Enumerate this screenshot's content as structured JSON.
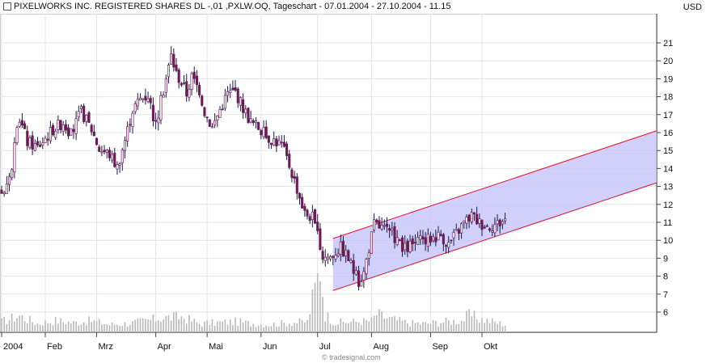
{
  "title": "PIXELWORKS INC. REGISTERED SHARES DL -,01 ,PXLW.OQ, Tageschart - 07.01.2004 - 27.10.2004 - 11.15",
  "currency": "USD",
  "watermark": "© tradesignal.com",
  "colors": {
    "background": "#ffffff",
    "candle_body": "#6a1d55",
    "candle_wick": "#1a1a4a",
    "volume_bar": "#b8b8b8",
    "channel_fill": "#c4c4fa",
    "channel_border": "#e01030",
    "grid": "#e4e4e4",
    "axis": "#444444"
  },
  "chart_data": {
    "type": "candlestick",
    "title": "PIXELWORKS INC. REGISTERED SHARES DL -,01 ,PXLW.OQ, Tageschart - 07.01.2004 - 27.10.2004 - 11.15",
    "ylabel": "USD",
    "ylim": [
      5.5,
      22
    ],
    "y_ticks": [
      6,
      7,
      8,
      9,
      10,
      11,
      12,
      13,
      14,
      15,
      16,
      17,
      18,
      19,
      20,
      21
    ],
    "x_ticks": [
      "2004",
      "Feb",
      "Mrz",
      "Apr",
      "Mai",
      "Jun",
      "Jul",
      "Aug",
      "Sep",
      "Okt"
    ],
    "x_tick_days": [
      0,
      17,
      37,
      60,
      80,
      101,
      123,
      144,
      167,
      187
    ],
    "total_days": 255,
    "grid": true,
    "trend_channel": {
      "start_day": 129,
      "end_day": 255,
      "upper": [
        10.1,
        16.1
      ],
      "lower": [
        7.2,
        13.2
      ]
    },
    "price_keypoints": [
      [
        0,
        12.7
      ],
      [
        3,
        13.4
      ],
      [
        7,
        16.8
      ],
      [
        10,
        15.5
      ],
      [
        14,
        15.2
      ],
      [
        20,
        16.2
      ],
      [
        24,
        16.6
      ],
      [
        27,
        15.9
      ],
      [
        31,
        17.2
      ],
      [
        35,
        16.2
      ],
      [
        38,
        15.1
      ],
      [
        42,
        14.8
      ],
      [
        45,
        14.1
      ],
      [
        48,
        15.6
      ],
      [
        51,
        17.3
      ],
      [
        54,
        17.9
      ],
      [
        57,
        18.1
      ],
      [
        60,
        16.4
      ],
      [
        63,
        18.4
      ],
      [
        66,
        20.3
      ],
      [
        68,
        19.3
      ],
      [
        70,
        18.8
      ],
      [
        72,
        18.2
      ],
      [
        74,
        19.1
      ],
      [
        77,
        18.4
      ],
      [
        79,
        17.2
      ],
      [
        82,
        16.3
      ],
      [
        85,
        17.3
      ],
      [
        88,
        18.2
      ],
      [
        91,
        18.3
      ],
      [
        94,
        17.4
      ],
      [
        97,
        16.6
      ],
      [
        100,
        16.3
      ],
      [
        103,
        15.8
      ],
      [
        106,
        15.6
      ],
      [
        109,
        15.3
      ],
      [
        112,
        14.2
      ],
      [
        115,
        12.9
      ],
      [
        118,
        11.5
      ],
      [
        121,
        11.3
      ],
      [
        123,
        10.2
      ],
      [
        125,
        9.1
      ],
      [
        128,
        9.1
      ],
      [
        130,
        9.4
      ],
      [
        132,
        9.6
      ],
      [
        135,
        9.0
      ],
      [
        137,
        8.3
      ],
      [
        139,
        7.7
      ],
      [
        141,
        8.2
      ],
      [
        143,
        9.6
      ],
      [
        145,
        10.9
      ],
      [
        148,
        10.7
      ],
      [
        151,
        10.4
      ],
      [
        154,
        10.1
      ],
      [
        156,
        9.4
      ],
      [
        159,
        9.7
      ],
      [
        162,
        9.9
      ],
      [
        165,
        10.0
      ],
      [
        168,
        10.2
      ],
      [
        171,
        10.3
      ],
      [
        174,
        9.8
      ],
      [
        177,
        10.4
      ],
      [
        180,
        11.0
      ],
      [
        183,
        11.4
      ],
      [
        186,
        11.0
      ],
      [
        189,
        10.8
      ],
      [
        192,
        10.9
      ],
      [
        194,
        11.0
      ],
      [
        196,
        11.2
      ]
    ],
    "volume_relative": [
      [
        0,
        0.55
      ],
      [
        7,
        0.85
      ],
      [
        14,
        0.45
      ],
      [
        21,
        0.6
      ],
      [
        28,
        0.5
      ],
      [
        35,
        0.6
      ],
      [
        42,
        0.4
      ],
      [
        49,
        0.45
      ],
      [
        56,
        0.6
      ],
      [
        63,
        0.75
      ],
      [
        70,
        0.8
      ],
      [
        77,
        0.45
      ],
      [
        84,
        0.5
      ],
      [
        91,
        0.55
      ],
      [
        98,
        0.45
      ],
      [
        105,
        0.4
      ],
      [
        112,
        0.5
      ],
      [
        119,
        0.55
      ],
      [
        124,
        3.4
      ],
      [
        126,
        0.9
      ],
      [
        130,
        0.5
      ],
      [
        137,
        0.55
      ],
      [
        144,
        0.6
      ],
      [
        146,
        0.95
      ],
      [
        151,
        0.7
      ],
      [
        158,
        0.5
      ],
      [
        165,
        0.45
      ],
      [
        172,
        0.55
      ],
      [
        179,
        0.6
      ],
      [
        182,
        0.9
      ],
      [
        186,
        0.7
      ],
      [
        190,
        0.6
      ],
      [
        196,
        0.4
      ]
    ]
  }
}
